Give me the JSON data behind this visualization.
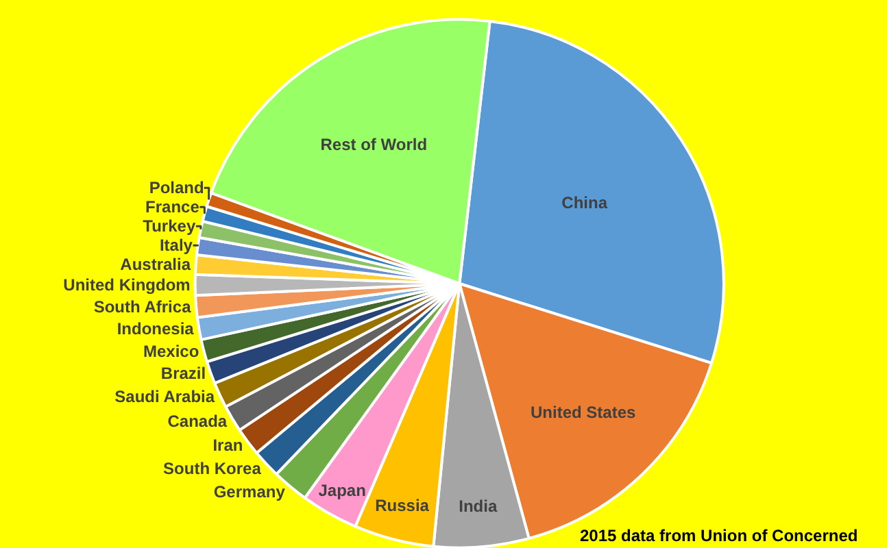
{
  "chart_data": {
    "type": "pie",
    "categories": [
      "China",
      "United States",
      "India",
      "Russia",
      "Japan",
      "Germany",
      "South Korea",
      "Iran",
      "Canada",
      "Saudi Arabia",
      "Brazil",
      "Mexico",
      "Indonesia",
      "South Africa",
      "United Kingdom",
      "Australia",
      "Italy",
      "Turkey",
      "France",
      "Poland",
      "Rest of World"
    ],
    "values": [
      28.03,
      15.9,
      5.81,
      4.87,
      3.5,
      2.23,
      1.75,
      1.72,
      1.64,
      1.56,
      1.38,
      1.37,
      1.36,
      1.33,
      1.26,
      1.19,
      1.06,
      1.0,
      0.93,
      0.85,
      21.26
    ],
    "colors": [
      "#5b9bd5",
      "#ed7d31",
      "#a5a5a5",
      "#ffc000",
      "#ff99cc",
      "#70ad47",
      "#255e91",
      "#9e480e",
      "#636363",
      "#997300",
      "#264478",
      "#43682b",
      "#7cafdd",
      "#f1975a",
      "#b7b7b7",
      "#ffcd33",
      "#698ed0",
      "#8cc168",
      "#327dc2",
      "#d26012",
      "#99ff66"
    ],
    "annotations": [
      "2015 data from Union of Concerned"
    ],
    "legend": false
  }
}
